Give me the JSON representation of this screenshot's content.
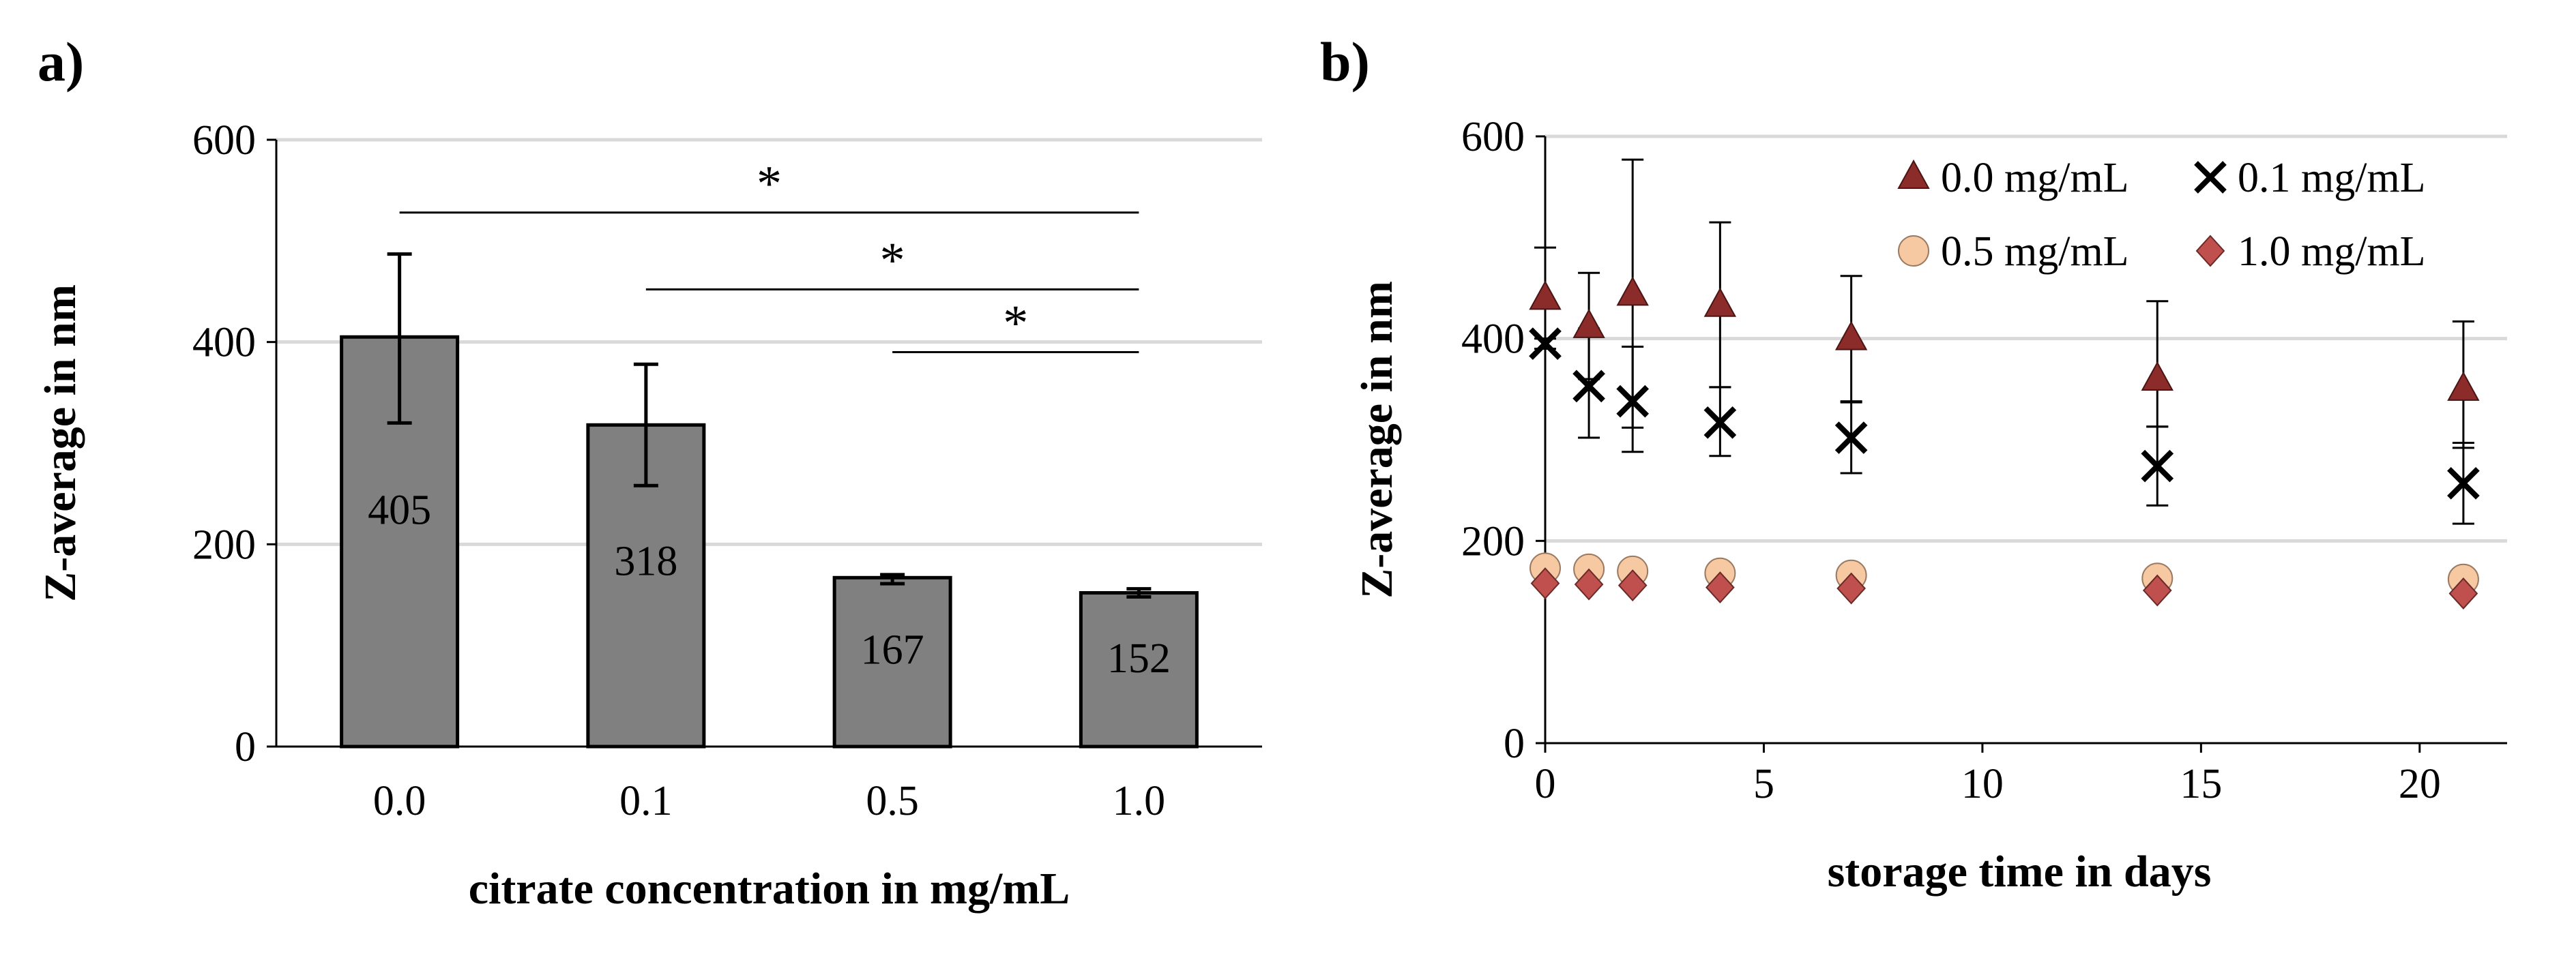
{
  "panel_a_label": "a)",
  "panel_b_label": "b)",
  "chart_data": [
    {
      "type": "bar",
      "panel": "a)",
      "categories": [
        "0.0",
        "0.1",
        "0.5",
        "1.0"
      ],
      "values": [
        405,
        318,
        167,
        152
      ],
      "value_labels": [
        "405",
        "318",
        "167",
        "152"
      ],
      "error": [
        [
          320,
          487
        ],
        [
          258,
          378
        ],
        [
          161,
          170
        ],
        [
          148,
          156
        ]
      ],
      "bar_color": "#808080",
      "title": "",
      "xlabel": "citrate concentration in mg/mL",
      "ylabel": "Z-average in nm",
      "ylim": [
        0,
        600
      ],
      "yticks": [
        "0",
        "200",
        "400",
        "600"
      ],
      "grid": true,
      "significance": [
        {
          "from": 0,
          "to": 3,
          "level": 528,
          "label": "*"
        },
        {
          "from": 1,
          "to": 3,
          "level": 452,
          "label": "*"
        },
        {
          "from": 2,
          "to": 3,
          "level": 390,
          "label": "*"
        }
      ]
    },
    {
      "type": "scatter",
      "panel": "b)",
      "title": "",
      "xlabel": "storage time in days",
      "ylabel": "Z-average in nm",
      "xlim": [
        0,
        22
      ],
      "ylim": [
        0,
        600
      ],
      "xticks": [
        "0",
        "5",
        "10",
        "15",
        "20"
      ],
      "yticks": [
        "0",
        "200",
        "400",
        "600"
      ],
      "grid": true,
      "legend_position": "top-right",
      "series": [
        {
          "name": "0.0 mg/mL",
          "marker": "triangle",
          "color": "#8b2c2a",
          "x": [
            0,
            1,
            2,
            4,
            7,
            14,
            21
          ],
          "y": [
            440,
            412,
            444,
            433,
            400,
            360,
            350
          ],
          "err_low": [
            390,
            360,
            312,
            352,
            338,
            313,
            292
          ],
          "err_high": [
            490,
            465,
            577,
            515,
            462,
            437,
            417
          ]
        },
        {
          "name": "0.1 mg/mL",
          "marker": "x",
          "color": "#000000",
          "x": [
            0,
            1,
            2,
            4,
            7,
            14,
            21
          ],
          "y": [
            395,
            353,
            338,
            317,
            302,
            274,
            257
          ],
          "err_low": [
            390,
            302,
            288,
            284,
            267,
            235,
            217
          ],
          "err_high": [
            400,
            410,
            392,
            352,
            337,
            313,
            297
          ]
        },
        {
          "name": "0.5 mg/mL",
          "marker": "circle",
          "color": "#f7c9a3",
          "x": [
            0,
            1,
            2,
            4,
            7,
            14,
            21
          ],
          "y": [
            173,
            172,
            170,
            168,
            166,
            163,
            162
          ]
        },
        {
          "name": "1.0 mg/mL",
          "marker": "diamond",
          "color": "#c0504d",
          "x": [
            0,
            1,
            2,
            4,
            7,
            14,
            21
          ],
          "y": [
            158,
            157,
            156,
            154,
            153,
            151,
            148
          ]
        }
      ]
    }
  ]
}
